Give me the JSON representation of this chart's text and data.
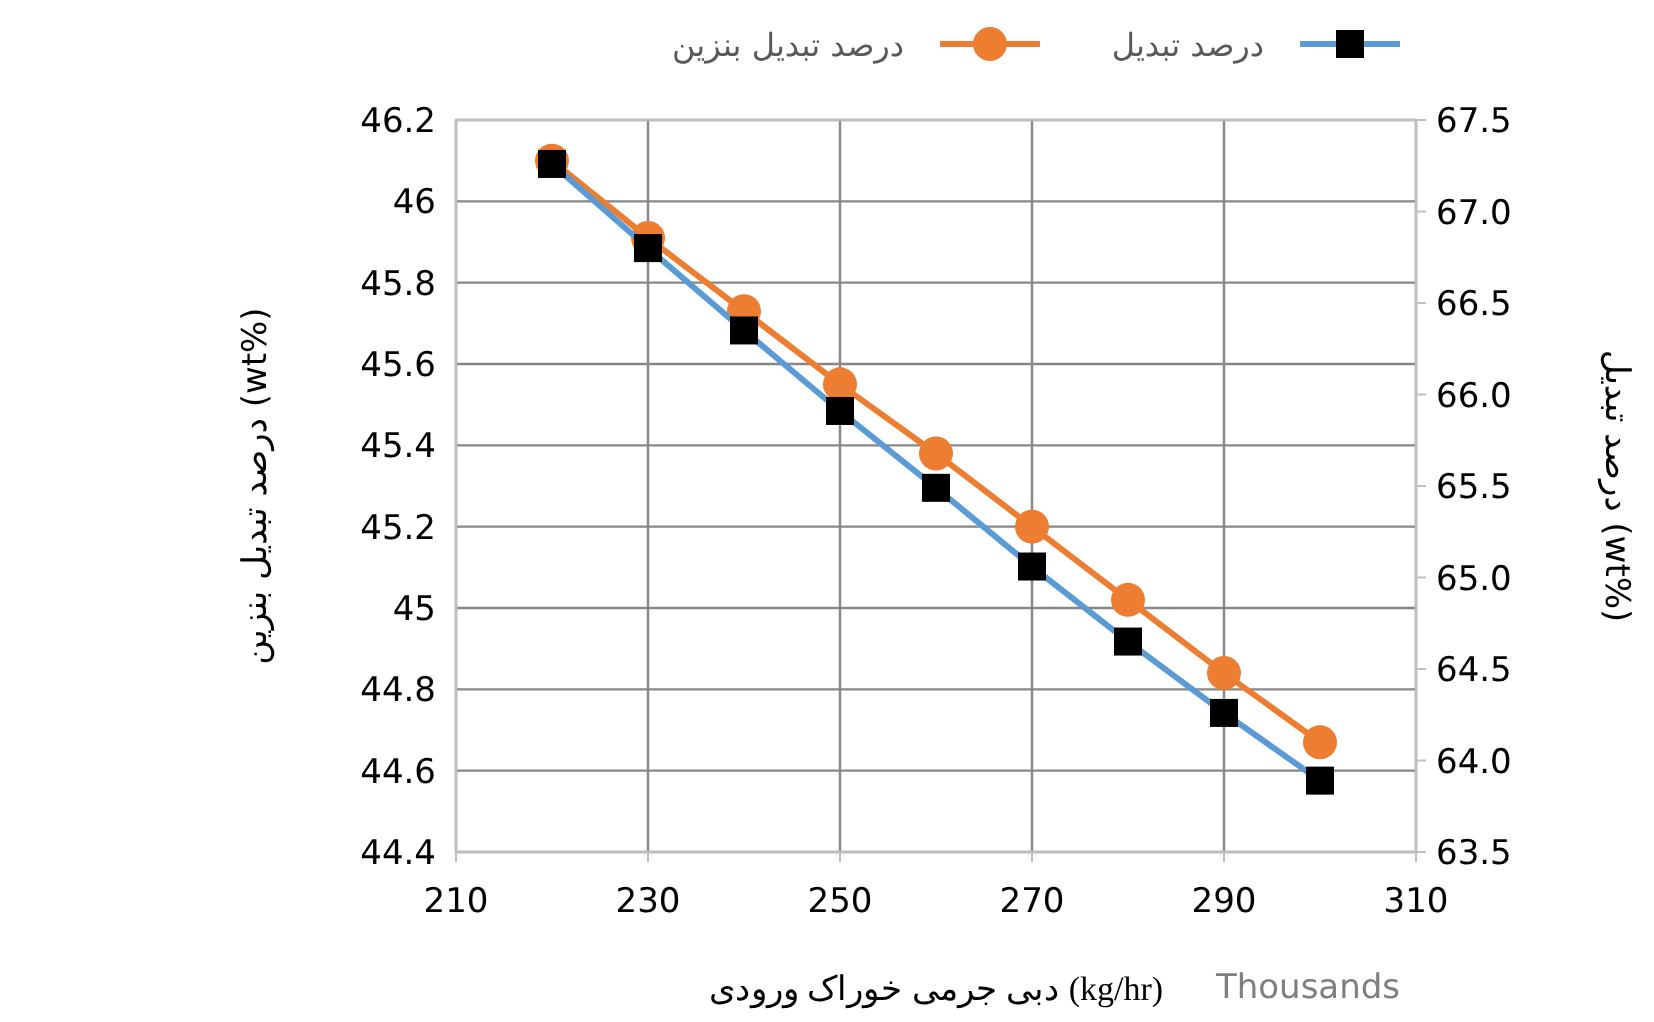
{
  "chart_data": {
    "type": "line",
    "xlabel": "دبی جرمی خوراک ورودی (kg/hr)",
    "ylabel": "درصد تبدیل بنزین (wt%)",
    "y2label": "درصد تبدیل (wt%)",
    "x": [
      220,
      230,
      240,
      250,
      260,
      270,
      280,
      290,
      300
    ],
    "series": [
      {
        "name": "درصد تبدیل بنزین",
        "color": "#ed7d31",
        "marker": "circle",
        "values": [
          46.1,
          45.91,
          45.73,
          45.55,
          45.38,
          45.2,
          45.02,
          44.84,
          44.67
        ]
      },
      {
        "name": "درصد تبدیل",
        "color": "#5b9bd5",
        "marker": "square",
        "axis": "y2",
        "values": [
          67.26,
          66.8,
          66.35,
          65.91,
          65.49,
          65.06,
          64.65,
          64.26,
          63.89
        ]
      }
    ],
    "xlim": [
      210,
      310
    ],
    "xticks": [
      210,
      230,
      250,
      270,
      290,
      310
    ],
    "ylim": [
      44.4,
      46.2
    ],
    "yticks": [
      44.4,
      44.6,
      44.8,
      45,
      45.2,
      45.4,
      45.6,
      45.8,
      46,
      46.2
    ],
    "y2lim": [
      63.5,
      67.5
    ],
    "y2ticks": [
      {
        "value": 63.5,
        "label": "63.5"
      },
      {
        "value": 64,
        "label": "64.0"
      },
      {
        "value": 64.5,
        "label": "64.5"
      },
      {
        "value": 65,
        "label": "65.0"
      },
      {
        "value": 65.5,
        "label": "65.5"
      },
      {
        "value": 66,
        "label": "66.0"
      },
      {
        "value": 66.5,
        "label": "66.5"
      },
      {
        "value": 67,
        "label": "67.0"
      },
      {
        "value": 67.5,
        "label": "67.5"
      }
    ],
    "annotations": [
      "Thousands"
    ],
    "grid": true,
    "legend": "top"
  }
}
